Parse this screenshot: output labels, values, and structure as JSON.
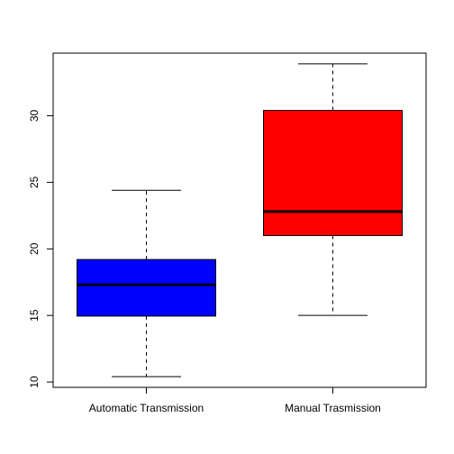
{
  "chart_data": {
    "type": "box",
    "title": "",
    "xlabel": "",
    "ylabel": "",
    "categories": [
      "Automatic Transmission",
      "Manual Trasmission"
    ],
    "boxes": [
      {
        "category": "Automatic Transmission",
        "whisker_low": 10.4,
        "q1": 14.95,
        "median": 17.3,
        "q3": 19.2,
        "whisker_high": 24.4,
        "fill": "#0000FF"
      },
      {
        "category": "Manual Trasmission",
        "whisker_low": 15.0,
        "q1": 21.0,
        "median": 22.8,
        "q3": 30.4,
        "whisker_high": 33.9,
        "fill": "#FF0000"
      }
    ],
    "ylim": [
      9.6,
      34.7
    ],
    "yticks": [
      10,
      15,
      20,
      25,
      30
    ],
    "ytick_labels": [
      "10",
      "15",
      "20",
      "25",
      "30"
    ],
    "grid": false,
    "legend": "none"
  }
}
